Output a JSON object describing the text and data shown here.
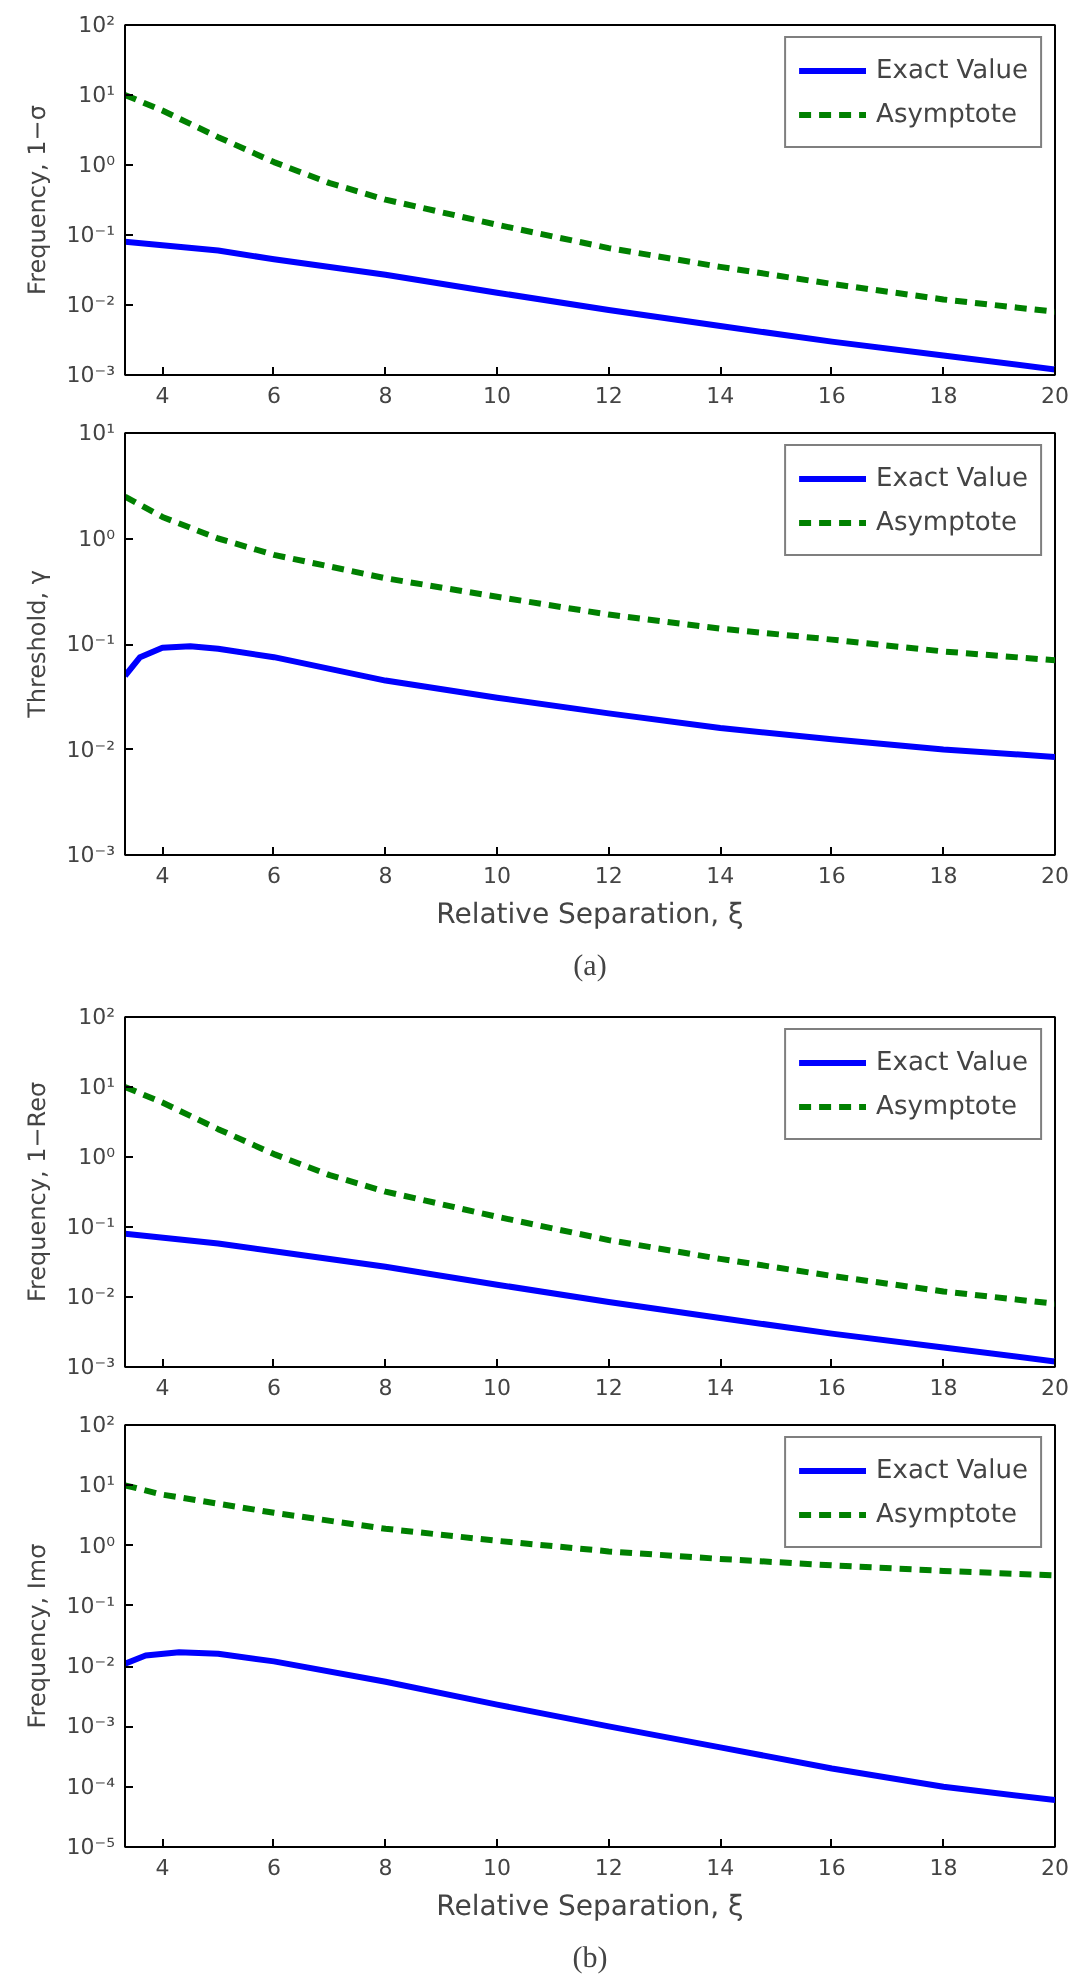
{
  "chart_data": [
    {
      "type": "line",
      "ylabel": "Frequency, 1−σ",
      "log": "y",
      "grid": false,
      "legend": "top right",
      "xlim": [
        3.33,
        20
      ],
      "xticks": [
        4,
        6,
        8,
        10,
        12,
        14,
        16,
        18,
        20
      ],
      "ylim": [
        0.001,
        100
      ],
      "yticks": [
        {
          "value": 0.001,
          "label": "10⁻³"
        },
        {
          "value": 0.01,
          "label": "10⁻²"
        },
        {
          "value": 0.1,
          "label": "10⁻¹"
        },
        {
          "value": 1,
          "label": "10⁰"
        },
        {
          "value": 10,
          "label": "10¹"
        },
        {
          "value": 100,
          "label": "10²"
        }
      ],
      "series": [
        {
          "name": "Exact Value",
          "color": "#0000ff",
          "line_style": "solid",
          "x": [
            3.33,
            5,
            6,
            8,
            10,
            12,
            14,
            16,
            18,
            20
          ],
          "values": [
            0.08,
            0.06,
            0.045,
            0.027,
            0.015,
            0.0085,
            0.005,
            0.003,
            0.0019,
            0.0012
          ]
        },
        {
          "name": "Asymptote",
          "color": "#008000",
          "line_style": "dashed",
          "x": [
            3.33,
            4,
            5,
            6,
            7,
            8,
            10,
            12,
            14,
            16,
            18,
            20
          ],
          "values": [
            10,
            6,
            2.5,
            1.1,
            0.55,
            0.32,
            0.14,
            0.065,
            0.035,
            0.02,
            0.012,
            0.008
          ]
        }
      ]
    },
    {
      "type": "line",
      "ylabel": "Threshold, γ",
      "xlabel": "Relative Separation, ξ",
      "annotations": [
        "(a)"
      ],
      "log": "y",
      "grid": false,
      "legend": "top right",
      "xlim": [
        3.33,
        20
      ],
      "xticks": [
        4,
        6,
        8,
        10,
        12,
        14,
        16,
        18,
        20
      ],
      "ylim": [
        0.001,
        10
      ],
      "yticks": [
        {
          "value": 0.001,
          "label": "10⁻³"
        },
        {
          "value": 0.01,
          "label": "10⁻²"
        },
        {
          "value": 0.1,
          "label": "10⁻¹"
        },
        {
          "value": 1,
          "label": "10⁰"
        },
        {
          "value": 10,
          "label": "10¹"
        }
      ],
      "series": [
        {
          "name": "Exact Value",
          "color": "#0000ff",
          "line_style": "solid",
          "x": [
            3.33,
            3.6,
            4,
            4.5,
            5,
            6,
            8,
            10,
            12,
            14,
            16,
            18,
            20
          ],
          "values": [
            0.05,
            0.075,
            0.092,
            0.095,
            0.09,
            0.075,
            0.045,
            0.031,
            0.022,
            0.016,
            0.0125,
            0.01,
            0.0085
          ]
        },
        {
          "name": "Asymptote",
          "color": "#008000",
          "line_style": "dashed",
          "x": [
            3.33,
            4,
            5,
            6,
            8,
            10,
            12,
            14,
            16,
            18,
            20
          ],
          "values": [
            2.5,
            1.6,
            1.0,
            0.7,
            0.42,
            0.28,
            0.19,
            0.14,
            0.11,
            0.085,
            0.07
          ]
        }
      ]
    },
    {
      "type": "line",
      "ylabel": "Frequency, 1−Reσ",
      "log": "y",
      "grid": false,
      "legend": "top right",
      "xlim": [
        3.33,
        20
      ],
      "xticks": [
        4,
        6,
        8,
        10,
        12,
        14,
        16,
        18,
        20
      ],
      "ylim": [
        0.001,
        100
      ],
      "yticks": [
        {
          "value": 0.001,
          "label": "10⁻³"
        },
        {
          "value": 0.01,
          "label": "10⁻²"
        },
        {
          "value": 0.1,
          "label": "10⁻¹"
        },
        {
          "value": 1,
          "label": "10⁰"
        },
        {
          "value": 10,
          "label": "10¹"
        },
        {
          "value": 100,
          "label": "10²"
        }
      ],
      "series": [
        {
          "name": "Exact Value",
          "color": "#0000ff",
          "line_style": "solid",
          "x": [
            3.33,
            5,
            6,
            8,
            10,
            12,
            14,
            16,
            18,
            20
          ],
          "values": [
            0.08,
            0.058,
            0.045,
            0.027,
            0.015,
            0.0085,
            0.005,
            0.003,
            0.0019,
            0.0012
          ]
        },
        {
          "name": "Asymptote",
          "color": "#008000",
          "line_style": "dashed",
          "x": [
            3.33,
            4,
            5,
            6,
            7,
            8,
            10,
            12,
            14,
            16,
            18,
            20
          ],
          "values": [
            10,
            6,
            2.5,
            1.1,
            0.55,
            0.32,
            0.14,
            0.065,
            0.035,
            0.02,
            0.012,
            0.008
          ]
        }
      ]
    },
    {
      "type": "line",
      "ylabel": "Frequency, Imσ",
      "xlabel": "Relative Separation, ξ",
      "annotations": [
        "(b)"
      ],
      "log": "y",
      "grid": false,
      "legend": "top right",
      "xlim": [
        3.33,
        20
      ],
      "xticks": [
        4,
        6,
        8,
        10,
        12,
        14,
        16,
        18,
        20
      ],
      "ylim": [
        1e-05,
        100
      ],
      "yticks": [
        {
          "value": 1e-05,
          "label": "10⁻⁵"
        },
        {
          "value": 0.0001,
          "label": "10⁻⁴"
        },
        {
          "value": 0.001,
          "label": "10⁻³"
        },
        {
          "value": 0.01,
          "label": "10⁻²"
        },
        {
          "value": 0.1,
          "label": "10⁻¹"
        },
        {
          "value": 1,
          "label": "10⁰"
        },
        {
          "value": 10,
          "label": "10¹"
        },
        {
          "value": 100,
          "label": "10²"
        }
      ],
      "series": [
        {
          "name": "Exact Value",
          "color": "#0000ff",
          "line_style": "solid",
          "x": [
            3.33,
            3.7,
            4.3,
            5,
            6,
            8,
            10,
            12,
            14,
            16,
            18,
            20
          ],
          "values": [
            0.011,
            0.015,
            0.017,
            0.016,
            0.012,
            0.0055,
            0.0023,
            0.001,
            0.00045,
            0.0002,
            0.0001,
            6e-05
          ]
        },
        {
          "name": "Asymptote",
          "color": "#008000",
          "line_style": "dashed",
          "x": [
            3.33,
            4,
            6,
            8,
            10,
            12,
            14,
            16,
            18,
            20
          ],
          "values": [
            10,
            7,
            3.5,
            1.9,
            1.2,
            0.8,
            0.6,
            0.47,
            0.38,
            0.32
          ]
        }
      ]
    }
  ]
}
